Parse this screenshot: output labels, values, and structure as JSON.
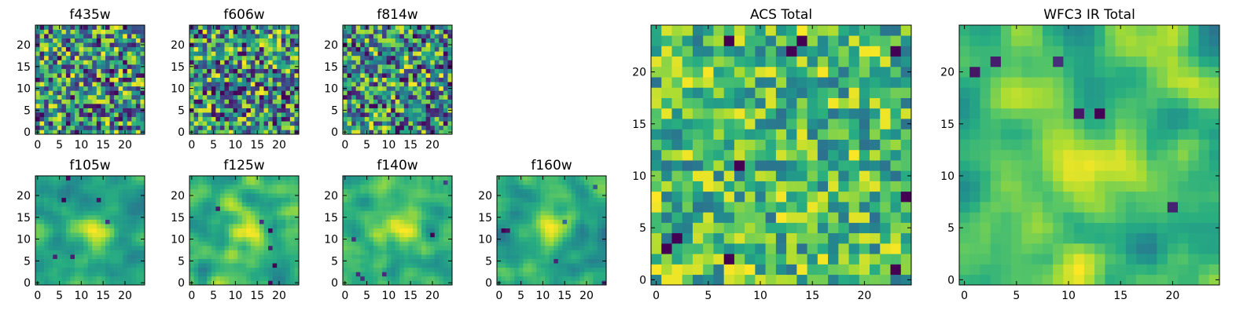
{
  "chart_data": {
    "type": "heatmap",
    "colormap": "viridis",
    "grid": false,
    "xlim": [
      0,
      25
    ],
    "ylim": [
      0,
      25
    ],
    "image_size": [
      25,
      25
    ],
    "small_xticks": [
      "0",
      "5",
      "10",
      "15",
      "20"
    ],
    "small_yticks": [
      "0",
      "5",
      "10",
      "15",
      "20"
    ],
    "large_xticks": [
      "0",
      "5",
      "10",
      "15",
      "20"
    ],
    "large_yticks": [
      "0",
      "5",
      "10",
      "15",
      "20"
    ],
    "panels": [
      {
        "title": "f435w",
        "texture": "noisy"
      },
      {
        "title": "f606w",
        "texture": "noisy"
      },
      {
        "title": "f814w",
        "texture": "noisy"
      },
      {
        "title": "f105w",
        "texture": "smooth"
      },
      {
        "title": "f125w",
        "texture": "smooth"
      },
      {
        "title": "f140w",
        "texture": "smooth"
      },
      {
        "title": "f160w",
        "texture": "smooth"
      },
      {
        "title": "ACS Total",
        "texture": "blocky"
      },
      {
        "title": "WFC3 IR Total",
        "texture": "smooth"
      }
    ]
  }
}
